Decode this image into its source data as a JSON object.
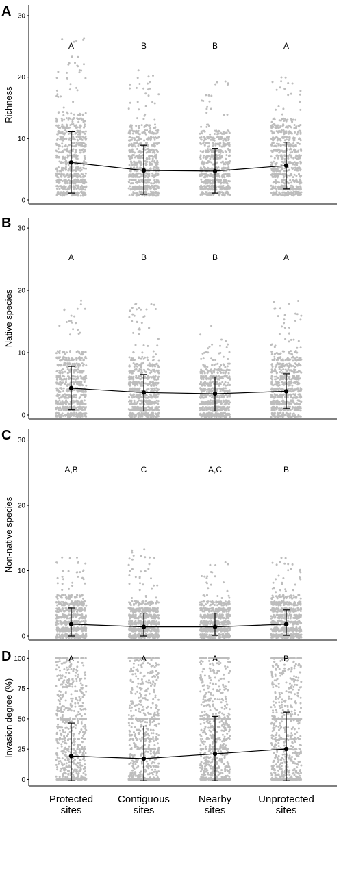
{
  "categories": [
    [
      "Protected",
      "sites"
    ],
    [
      "Contiguous",
      "sites"
    ],
    [
      "Nearby",
      "sites"
    ],
    [
      "Unprotected",
      "sites"
    ]
  ],
  "colors": {
    "points": "#bdbdbd",
    "line": "#000000",
    "axis": "#000000"
  },
  "chart_data": [
    {
      "type": "scatter",
      "panel": "A",
      "ylabel": "Richness",
      "ylim": [
        0,
        31
      ],
      "yticks": [
        0,
        10,
        20,
        30
      ],
      "categories": [
        "Protected sites",
        "Contiguous sites",
        "Nearby sites",
        "Unprotected sites"
      ],
      "group_letters": [
        "A",
        "B",
        "B",
        "A"
      ],
      "mean": [
        6.1,
        4.8,
        4.7,
        5.6
      ],
      "sd_low": [
        1.1,
        0.9,
        1.1,
        1.8
      ],
      "sd_high": [
        11.1,
        8.9,
        8.4,
        9.4
      ],
      "jitter": {
        "min": [
          1,
          1,
          1,
          1
        ],
        "max": [
          27,
          21,
          19.5,
          20.5
        ],
        "dense_max": [
          14,
          12,
          11,
          13
        ],
        "count": 650
      }
    },
    {
      "type": "scatter",
      "panel": "B",
      "ylabel": "Native species",
      "ylim": [
        0,
        31
      ],
      "yticks": [
        0,
        10,
        20,
        30
      ],
      "categories": [
        "Protected sites",
        "Contiguous sites",
        "Nearby sites",
        "Unprotected sites"
      ],
      "group_letters": [
        "A",
        "B",
        "B",
        "A"
      ],
      "mean": [
        4.3,
        3.6,
        3.4,
        3.8
      ],
      "sd_low": [
        0.8,
        0.6,
        0.6,
        1.0
      ],
      "sd_high": [
        7.8,
        6.5,
        6.1,
        6.6
      ],
      "jitter": {
        "min": [
          0,
          0,
          0,
          0
        ],
        "max": [
          18,
          18,
          14,
          18.5
        ],
        "dense_max": [
          10,
          9,
          8,
          10
        ],
        "count": 650
      }
    },
    {
      "type": "scatter",
      "panel": "C",
      "ylabel": "Non-native species",
      "ylim": [
        0,
        31
      ],
      "yticks": [
        0,
        10,
        20,
        30
      ],
      "categories": [
        "Protected sites",
        "Contiguous sites",
        "Nearby sites",
        "Unprotected sites"
      ],
      "group_letters": [
        "A,B",
        "C",
        "A,C",
        "B"
      ],
      "mean": [
        1.8,
        1.4,
        1.4,
        1.8
      ],
      "sd_low": [
        0.0,
        0.0,
        0.1,
        0.1
      ],
      "sd_high": [
        4.3,
        3.5,
        3.5,
        4.0
      ],
      "jitter": {
        "min": [
          0,
          0,
          0,
          0
        ],
        "max": [
          12,
          12.8,
          11,
          12
        ],
        "dense_max": [
          6,
          5,
          5,
          6
        ],
        "count": 650
      }
    },
    {
      "type": "scatter",
      "panel": "D",
      "ylabel": "Invasion degree (%)",
      "ylim": [
        -2,
        103
      ],
      "yticks": [
        0,
        25,
        50,
        75,
        100
      ],
      "categories": [
        "Protected sites",
        "Contiguous sites",
        "Nearby sites",
        "Unprotected sites"
      ],
      "group_letters": [
        "A",
        "A",
        "A",
        "B"
      ],
      "mean": [
        19.3,
        17.2,
        21.1,
        25.1
      ],
      "sd_low": [
        -1.0,
        -1.0,
        -1.0,
        -1.0
      ],
      "sd_high": [
        46.5,
        44.0,
        52.0,
        55.5
      ],
      "jitter": {
        "min": [
          0,
          0,
          0,
          0
        ],
        "max": [
          100,
          100,
          100,
          100
        ],
        "dense_max": [
          100,
          100,
          100,
          100
        ],
        "count": 650
      }
    }
  ]
}
